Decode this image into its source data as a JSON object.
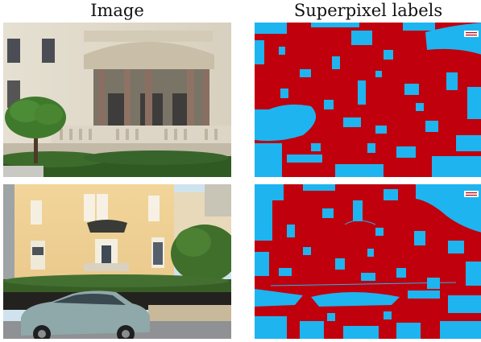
{
  "titles": {
    "left": "Image",
    "right": "Superpixel labels"
  },
  "colors": {
    "label_a": "#c0000d",
    "label_b": "#1eb4ef"
  }
}
